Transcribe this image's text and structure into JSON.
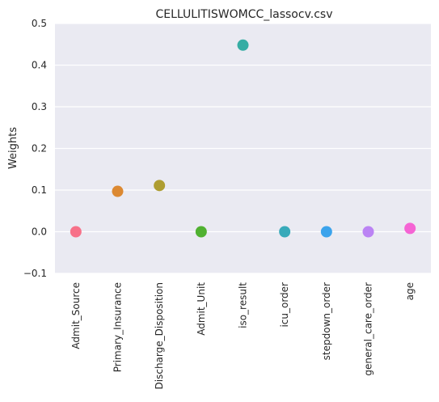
{
  "chart_data": {
    "type": "scatter",
    "title": "CELLULITISWOMCC_lassocv.csv",
    "xlabel": "",
    "ylabel": "Weights",
    "categories": [
      "Admit_Source",
      "Primary_Insurance",
      "Discharge_Disposition",
      "Admit_Unit",
      "iso_result",
      "icu_order",
      "stepdown_order",
      "general_care_order",
      "age"
    ],
    "values": [
      0.0,
      0.097,
      0.111,
      0.0,
      0.448,
      0.0,
      0.0,
      0.0,
      0.008
    ],
    "point_colors": [
      "#f77189",
      "#dc8932",
      "#ae9d31",
      "#50b131",
      "#36ada4",
      "#38aaba",
      "#3ba3ec",
      "#bb83f4",
      "#f564d4"
    ],
    "ylim": [
      -0.1,
      0.5
    ],
    "yticks": [
      -0.1,
      0.0,
      0.1,
      0.2,
      0.3,
      0.4,
      0.5
    ],
    "ytick_labels": [
      "−0.1",
      "0.0",
      "0.1",
      "0.2",
      "0.3",
      "0.4",
      "0.5"
    ],
    "grid": true,
    "background": "#eaeaf2"
  }
}
